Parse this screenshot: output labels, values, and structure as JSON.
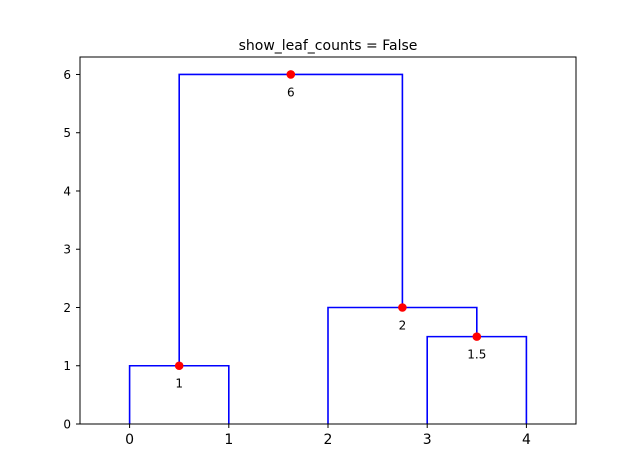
{
  "chart_data": {
    "type": "dendrogram",
    "title": "show_leaf_counts = False",
    "xlabel": "",
    "ylabel": "",
    "xlim": [
      -0.5,
      4.5
    ],
    "ylim": [
      0,
      6.3
    ],
    "xticks": [
      0,
      1,
      2,
      3,
      4
    ],
    "xtick_labels": [
      "0",
      "1",
      "2",
      "3",
      "4"
    ],
    "yticks": [
      0,
      1,
      2,
      3,
      4,
      5,
      6
    ],
    "ytick_labels": [
      "0",
      "1",
      "2",
      "3",
      "4",
      "5",
      "6"
    ],
    "grid": false,
    "link_color": "#0000ff",
    "node_color": "#ff0000",
    "links": [
      {
        "left_x": 0,
        "right_x": 1,
        "left_y": 0,
        "right_y": 0,
        "height": 1
      },
      {
        "left_x": 3,
        "right_x": 4,
        "left_y": 0,
        "right_y": 0,
        "height": 1.5
      },
      {
        "left_x": 2,
        "right_x": 3.5,
        "left_y": 0,
        "right_y": 1.5,
        "height": 2
      },
      {
        "left_x": 0.5,
        "right_x": 2.75,
        "left_y": 1,
        "right_y": 2,
        "height": 6
      }
    ],
    "nodes": [
      {
        "x": 0.5,
        "y": 1,
        "label": "1"
      },
      {
        "x": 3.5,
        "y": 1.5,
        "label": "1.5"
      },
      {
        "x": 2.75,
        "y": 2,
        "label": "2"
      },
      {
        "x": 1.625,
        "y": 6,
        "label": "6"
      }
    ]
  }
}
